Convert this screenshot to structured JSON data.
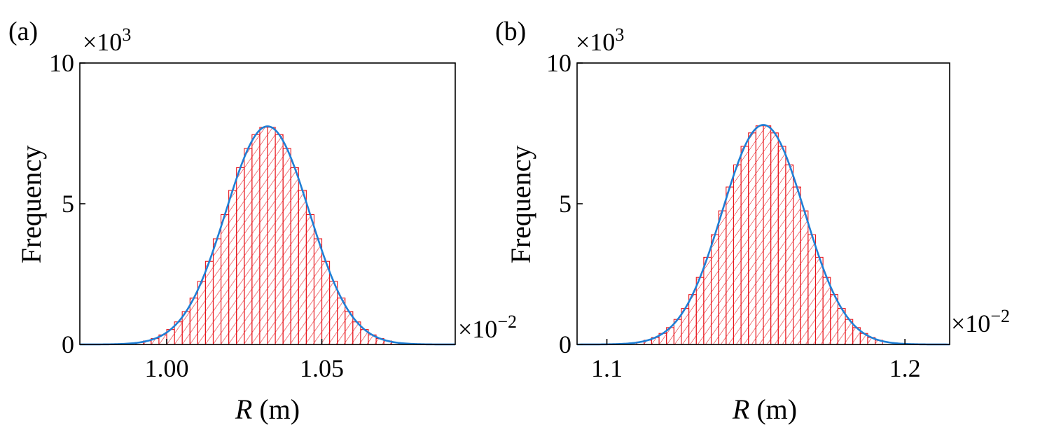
{
  "chart_data": [
    {
      "type": "bar",
      "subtype": "histogram_with_fit",
      "panel_label": "(a)",
      "xlabel": {
        "var": "R",
        "unit": " (m)"
      },
      "ylabel": "Frequency",
      "y_multiplier": {
        "base": "×10",
        "exp": "3"
      },
      "x_multiplier": {
        "base": "×10",
        "exp": "−2"
      },
      "xlim": [
        0.972,
        1.093
      ],
      "ylim": [
        0,
        10
      ],
      "xticks": [
        1.0,
        1.05
      ],
      "xtick_labels": [
        "1.00",
        "1.05"
      ],
      "yticks": [
        0,
        5,
        10
      ],
      "ytick_labels": [
        "0",
        "5",
        "10"
      ],
      "bin_width": 0.0025,
      "bin_range": [
        0.99,
        1.075
      ],
      "fit": {
        "type": "gaussian",
        "mean": 1.0325,
        "sigma": 0.0135,
        "peak": 7.75
      },
      "hist_color": "#e8141b",
      "fit_color": "#1f7fd6"
    },
    {
      "type": "bar",
      "subtype": "histogram_with_fit",
      "panel_label": "(b)",
      "xlabel": {
        "var": "R",
        "unit": " (m)"
      },
      "ylabel": "Frequency",
      "y_multiplier": {
        "base": "×10",
        "exp": "3"
      },
      "x_multiplier": {
        "base": "×10",
        "exp": "−2"
      },
      "xlim": [
        1.09,
        1.215
      ],
      "ylim": [
        0,
        10
      ],
      "xticks": [
        1.1,
        1.2
      ],
      "xtick_labels": [
        "1.1",
        "1.2"
      ],
      "yticks": [
        0,
        5,
        10
      ],
      "ytick_labels": [
        "0",
        "5",
        "10"
      ],
      "bin_width": 0.0025,
      "bin_range": [
        1.11,
        1.1925
      ],
      "fit": {
        "type": "gaussian",
        "mean": 1.1525,
        "sigma": 0.0138,
        "peak": 7.8
      },
      "hist_color": "#e8141b",
      "fit_color": "#1f7fd6"
    }
  ]
}
